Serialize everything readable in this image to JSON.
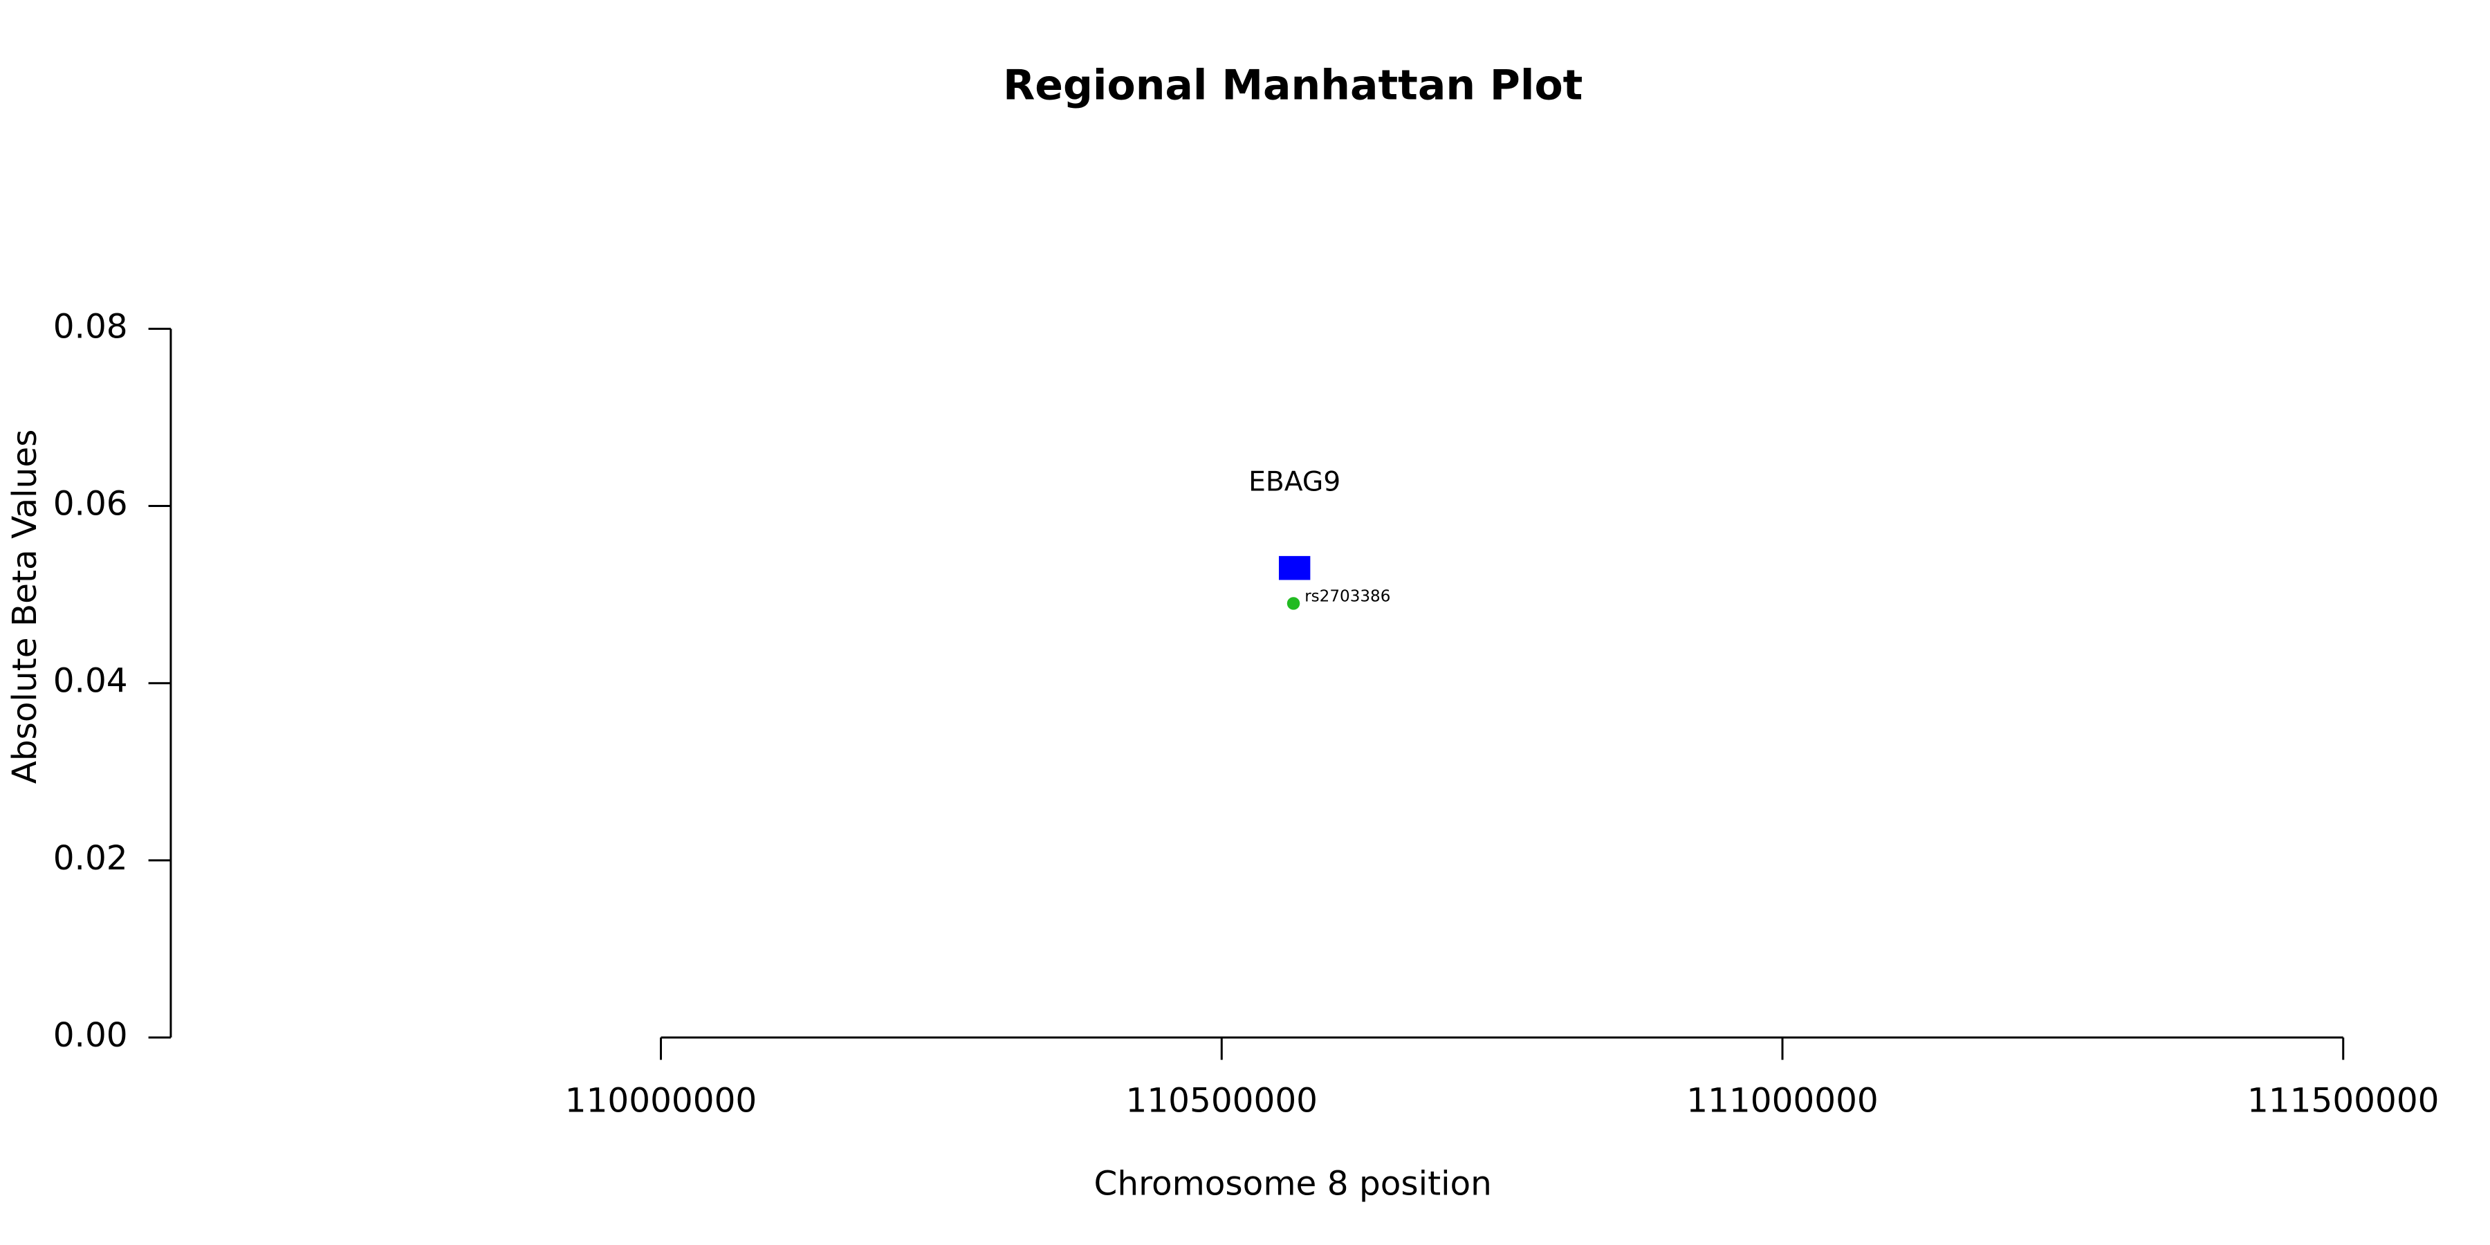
{
  "chart_data": {
    "type": "scatter",
    "title": "Regional Manhattan Plot",
    "x_label": "Chromosome 8 position",
    "y_label": "Absolute Beta Values",
    "series": [
      {
        "name": "rs2703386",
        "color": "#22bb22",
        "x": [
          110564000
        ],
        "values": [
          0.049
        ]
      }
    ],
    "genes": [
      {
        "name": "EBAG9",
        "color": "#0000ff",
        "start": 110551000,
        "end": 110579000,
        "y": 0.053
      }
    ],
    "xlim": [
      109563000,
      111564000
    ],
    "xticks": [
      110000000,
      110500000,
      111000000,
      111500000
    ],
    "ylim": [
      0,
      0.08
    ],
    "yticks": [
      {
        "value": 0,
        "label": "0.00"
      },
      {
        "value": 0.02,
        "label": "0.02"
      },
      {
        "value": 0.04,
        "label": "0.04"
      },
      {
        "value": 0.06,
        "label": "0.06"
      },
      {
        "value": 0.08,
        "label": "0.08"
      }
    ]
  }
}
